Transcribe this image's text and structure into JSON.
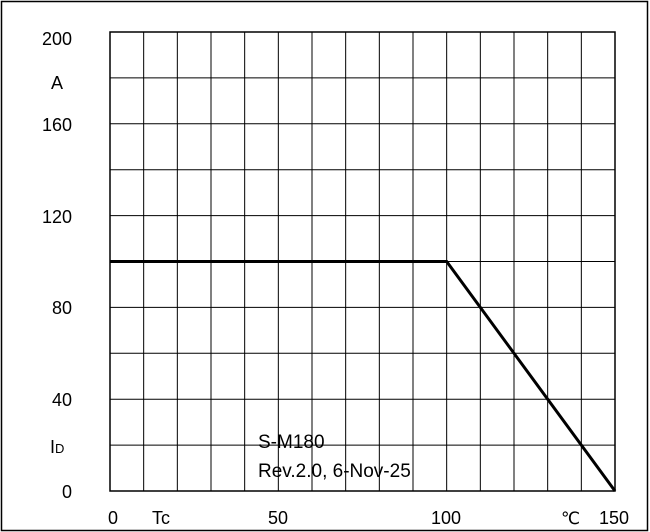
{
  "chart_data": {
    "type": "line",
    "title": "",
    "xlabel": "Tc",
    "x_unit": "℃",
    "ylabel_parts": {
      "main": "I",
      "sub": "D"
    },
    "y_unit": "A",
    "xlim": [
      0,
      150
    ],
    "ylim": [
      0,
      200
    ],
    "x_ticks": [
      "0",
      "50",
      "100",
      "150"
    ],
    "y_ticks": [
      "0",
      "40",
      "80",
      "120",
      "160",
      "200"
    ],
    "grid": true,
    "series": [
      {
        "x": [
          0,
          100,
          150
        ],
        "y": [
          100,
          100,
          0
        ]
      }
    ],
    "annotations": {
      "line1": "S-M180",
      "line2": "Rev.2.0, 6-Nov-25"
    }
  },
  "colors": {
    "line": "#000000",
    "grid": "#000000",
    "background": "#ffffff"
  }
}
